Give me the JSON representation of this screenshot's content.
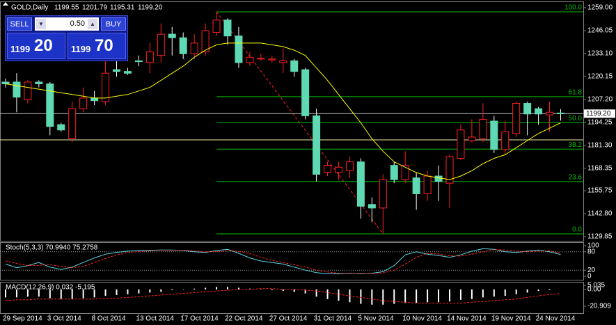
{
  "header": {
    "symbol": "GOLD,Daily"
  },
  "trade_panel": {
    "sell": "SELL",
    "buy": "BUY",
    "lot": "0.50",
    "bid_big": "1199",
    "bid_small": "20",
    "ask_big": "1199",
    "ask_small": "70"
  },
  "chart_data": [
    {
      "type": "candlestick",
      "categories": [
        "29 Sep 2014",
        null,
        null,
        null,
        "3 Oct 2014",
        null,
        null,
        null,
        "8 Oct 2014",
        null,
        null,
        null,
        "13 Oct 2014",
        null,
        null,
        null,
        "17 Oct 2014",
        null,
        null,
        null,
        "22 Oct 2014",
        null,
        null,
        null,
        "27 Oct 2014",
        null,
        null,
        null,
        "31 Oct 2014",
        null,
        null,
        null,
        "5 Nov 2014",
        null,
        null,
        null,
        "10 Nov 2014",
        null,
        null,
        null,
        "14 Nov 2014",
        null,
        null,
        null,
        "19 Nov 2014",
        null,
        null,
        null,
        "24 Nov 2014",
        null,
        null
      ],
      "open": [
        1217,
        1217,
        1207,
        1217,
        1216,
        1193,
        1185,
        1202,
        1208,
        1206,
        1224,
        1223,
        1229,
        1228,
        1232,
        1244,
        1242,
        1233,
        1234,
        1245,
        1252,
        1243,
        1228,
        1230,
        1229.5,
        1228,
        1229,
        1224,
        1198,
        1166,
        1166,
        1167,
        1172,
        1148,
        1146,
        1170,
        1162,
        1163,
        1154,
        1164,
        1160,
        1174,
        1184,
        1185,
        1195,
        1179,
        1188,
        1205,
        1202,
        1198.5,
        1199.55
      ],
      "high": [
        1219,
        1222,
        1218,
        1218,
        1217,
        1194,
        1206,
        1214,
        1212,
        1232,
        1231,
        1225,
        1232,
        1239,
        1250,
        1248,
        1245,
        1244,
        1250,
        1256.6,
        1253,
        1248,
        1234,
        1233,
        1232,
        1236,
        1230,
        1225,
        1202,
        1172,
        1172,
        1175,
        1174,
        1152,
        1165,
        1172,
        1178,
        1166,
        1167,
        1170,
        1176,
        1193,
        1196,
        1205,
        1198,
        1195,
        1206,
        1206,
        1203,
        1206,
        1201.79
      ],
      "low": [
        1214,
        1200,
        1205,
        1214,
        1187,
        1189,
        1183,
        1200,
        1204,
        1204,
        1220,
        1221,
        1226,
        1222,
        1228,
        1232,
        1230,
        1230,
        1232,
        1243,
        1238,
        1225,
        1226,
        1229,
        1228,
        1222,
        1220,
        1196,
        1161,
        1164,
        1162,
        1163,
        1140,
        1138,
        1131.4,
        1160,
        1160,
        1145,
        1150,
        1150,
        1146,
        1173,
        1183,
        1183,
        1177,
        1176,
        1186,
        1187,
        1193,
        1189,
        1195.31
      ],
      "close": [
        1216,
        1208.5,
        1217,
        1216,
        1192,
        1190,
        1202,
        1208,
        1206.5,
        1222,
        1223,
        1222,
        1228.5,
        1234,
        1244,
        1242,
        1233,
        1239,
        1246,
        1252,
        1243,
        1228,
        1231,
        1230.5,
        1230,
        1229,
        1223,
        1198,
        1165,
        1170,
        1169,
        1172,
        1147,
        1146,
        1162,
        1162,
        1170,
        1154,
        1164,
        1161,
        1175,
        1190,
        1186,
        1196,
        1179,
        1189,
        1205,
        1199,
        1199,
        1200,
        1199.2
      ],
      "up_color": "#ff2020",
      "down_color": "#5fd8b4",
      "ma": {
        "color": "#ffff00",
        "values": [
          1216,
          1215,
          1214,
          1213,
          1212,
          1211,
          1210,
          1209,
          1208,
          1208,
          1209,
          1210,
          1212,
          1214,
          1218,
          1222,
          1226,
          1231,
          1235,
          1238,
          1239,
          1239,
          1239,
          1239,
          1238,
          1237,
          1235,
          1232,
          1225,
          1218,
          1210,
          1202,
          1194,
          1185,
          1178,
          1172,
          1169,
          1166,
          1164,
          1163,
          1162,
          1164,
          1167,
          1171,
          1174,
          1176,
          1180,
          1184,
          1188,
          1191,
          1194
        ]
      },
      "ylim": [
        1127.5,
        1262.5
      ],
      "yticks": [
        {
          "value": 1259,
          "label": "1259.00"
        },
        1246.05,
        {
          "value": 1233.1,
          "label": "1233.10"
        },
        1220.15,
        {
          "value": 1207.2,
          "label": "1207.20"
        },
        1194.25,
        {
          "value": 1181.3,
          "label": "1181.30"
        },
        1168.35,
        1155.75,
        {
          "value": 1142.8,
          "label": "1142.80"
        },
        1129.85
      ],
      "price_line": {
        "value": 1199.2,
        "label": "1199.20",
        "color": "#c0c0c0"
      },
      "hline": {
        "value": 1184.4,
        "color": "#f0f0a0"
      },
      "fibo": {
        "color": "#00c000",
        "trend_color": "#ff2020",
        "levels": [
          {
            "label": "100.0",
            "value": 1256.6
          },
          {
            "label": "61.8",
            "value": 1208.8
          },
          {
            "label": "50.0",
            "value": 1194.0
          },
          {
            "label": "38.2",
            "value": 1179.2
          },
          {
            "label": "23.6",
            "value": 1160.9
          },
          {
            "label": "0.0",
            "value": 1131.4
          }
        ]
      }
    },
    {
      "type": "line",
      "title": "Stoch(5,3,3) 70.9940 75.2758",
      "ylim": [
        -11.4,
        111.4
      ],
      "yticks": [
        100,
        80,
        20,
        0
      ],
      "levels": [
        80,
        20
      ],
      "series": [
        {
          "color": "#5fd8e8",
          "dash": false,
          "values": [
            40,
            28,
            35,
            45,
            30,
            22,
            30,
            45,
            60,
            72,
            78,
            82,
            84,
            85,
            86,
            86,
            84,
            80,
            78,
            84,
            88,
            75,
            60,
            50,
            45,
            40,
            30,
            20,
            12,
            8,
            8,
            10,
            8,
            10,
            15,
            35,
            70,
            80,
            72,
            68,
            62,
            70,
            82,
            90,
            88,
            80,
            78,
            82,
            86,
            80,
            70.994
          ]
        },
        {
          "color": "#ff2020",
          "dash": true,
          "values": [
            50,
            42,
            35,
            36,
            38,
            32,
            28,
            32,
            45,
            58,
            70,
            77,
            81,
            83,
            85,
            85,
            85,
            83,
            80,
            81,
            83,
            82,
            74,
            62,
            52,
            45,
            38,
            30,
            20,
            14,
            10,
            9,
            9,
            9,
            11,
            20,
            40,
            62,
            74,
            73,
            67,
            66,
            72,
            80,
            87,
            86,
            82,
            80,
            82,
            83,
            75.2758
          ]
        }
      ]
    },
    {
      "type": "macd",
      "title": "MACD(12,26,9) 0.032 -5.195",
      "ylim": [
        -29.6,
        9.4
      ],
      "yticks": [
        5.035,
        {
          "value": 0,
          "label": "0.00"
        },
        -20.909
      ],
      "bars": {
        "color": "#ffffff",
        "values": [
          -10,
          -10,
          -9,
          -9,
          -11,
          -12,
          -12,
          -11,
          -10,
          -8,
          -7,
          -6,
          -5,
          -4,
          -3,
          -1,
          0.5,
          1,
          2,
          3,
          3,
          2,
          1,
          0.5,
          -1,
          -2,
          -3,
          -5,
          -9,
          -12,
          -14,
          -16,
          -18,
          -19,
          -19,
          -18,
          -17,
          -17,
          -16,
          -16,
          -15,
          -13,
          -12,
          -10,
          -9,
          -8,
          -6,
          -4,
          -2,
          -1,
          0.032
        ]
      },
      "signal": {
        "color": "#ff2020",
        "values": [
          -14,
          -13,
          -13,
          -12,
          -12,
          -12,
          -12,
          -12,
          -12,
          -11,
          -11,
          -10,
          -9,
          -8,
          -7,
          -6,
          -5,
          -4,
          -3,
          -2,
          -1,
          0,
          0,
          1,
          1,
          0,
          0,
          -1,
          -2,
          -4,
          -6,
          -8,
          -10,
          -12,
          -14,
          -15,
          -16,
          -17,
          -17,
          -17,
          -17,
          -17,
          -16,
          -15,
          -14,
          -13,
          -12,
          -10,
          -8,
          -6.5,
          -5.195
        ]
      }
    }
  ]
}
